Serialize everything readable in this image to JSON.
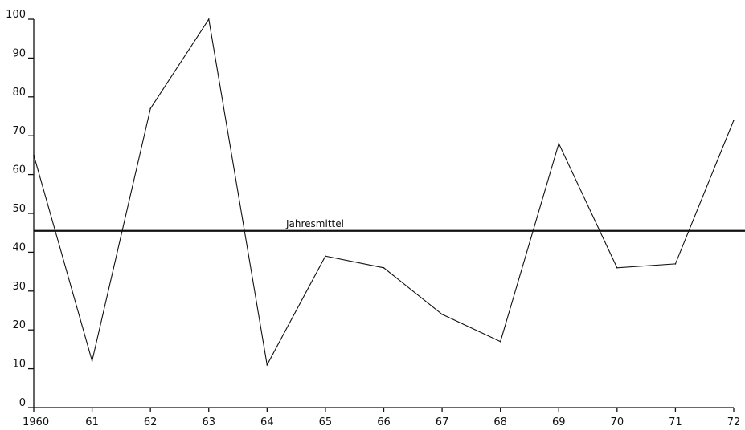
{
  "chart_data": {
    "type": "line",
    "title": "",
    "xlabel": "",
    "ylabel": "",
    "categories": [
      "1960",
      "61",
      "62",
      "63",
      "64",
      "65",
      "66",
      "67",
      "68",
      "69",
      "70",
      "71",
      "72"
    ],
    "series": [
      {
        "values": [
          65,
          12,
          77,
          100,
          11,
          39,
          36,
          24,
          17,
          68,
          36,
          37,
          74
        ]
      }
    ],
    "reference_lines": [
      {
        "label": "Jahresmittel",
        "value": 45.5
      }
    ],
    "yticks": [
      "0",
      "10",
      "20",
      "30",
      "40",
      "50",
      "60",
      "70",
      "80",
      "90",
      "100"
    ],
    "ylim": [
      0,
      100
    ],
    "grid": false,
    "legend": "none",
    "colors": {
      "line": "#111111",
      "background": "#ffffff"
    }
  }
}
